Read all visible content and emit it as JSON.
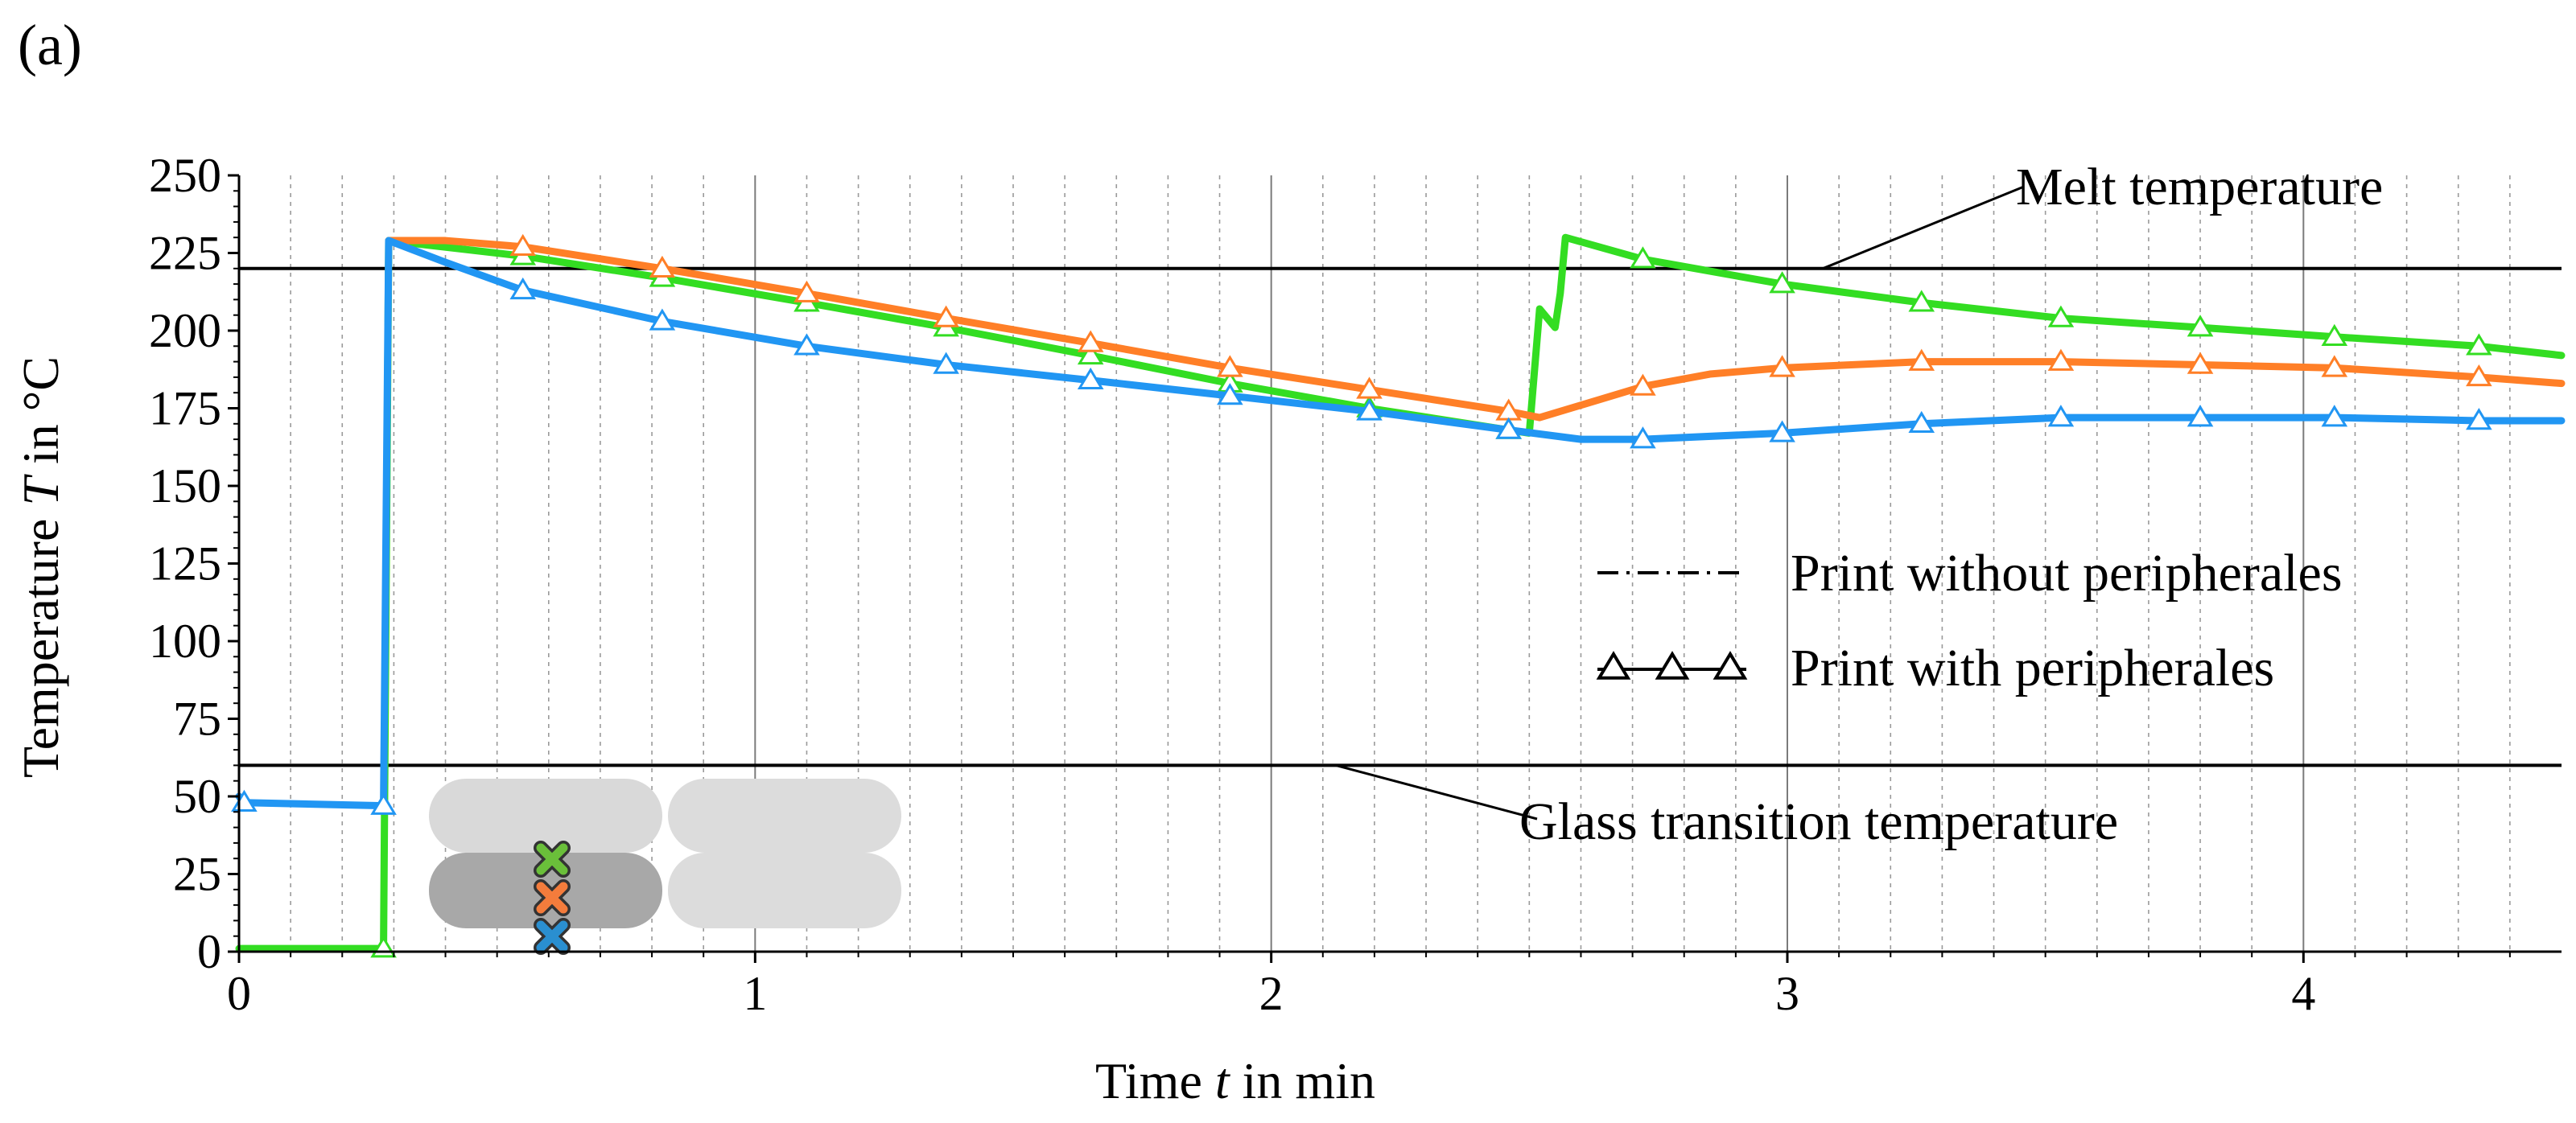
{
  "chart_data": {
    "type": "line",
    "panel_label": "(a)",
    "xlabel": "Time t in min",
    "xlabel_prefix": "Time ",
    "xlabel_var": "t",
    "xlabel_suffix": " in min",
    "ylabel": "Temperature T in °C",
    "ylabel_prefix": "Temperature ",
    "ylabel_var": "T",
    "ylabel_suffix": " in °C",
    "xlim": [
      0,
      4.5
    ],
    "ylim": [
      0,
      250
    ],
    "xticks": [
      0,
      1,
      2,
      3,
      4
    ],
    "xtick_labels": [
      "0",
      "1",
      "2",
      "3",
      "4"
    ],
    "yticks": [
      0,
      25,
      50,
      75,
      100,
      125,
      150,
      175,
      200,
      225,
      250
    ],
    "ytick_labels": [
      "0",
      "25",
      "50",
      "75",
      "100",
      "125",
      "150",
      "175",
      "200",
      "225",
      "250"
    ],
    "grid": "major solid, minor dotted (x)",
    "reference_lines": [
      {
        "name": "melt",
        "y": 220,
        "label": "Melt temperature"
      },
      {
        "name": "glass",
        "y": 60,
        "label": "Glass transition temperature"
      }
    ],
    "legend": {
      "placement": "center-right",
      "entries": [
        {
          "label": "Print without peripherales",
          "style": "dash-dot"
        },
        {
          "label": "Print with peripherales",
          "style": "triangle-markers"
        }
      ]
    },
    "series": [
      {
        "name": "Top (green)",
        "color": "#33dd22",
        "x": [
          0,
          0.27,
          0.28,
          0.29,
          0.55,
          0.82,
          1.1,
          1.37,
          1.65,
          1.92,
          2.19,
          2.46,
          2.5,
          2.52,
          2.55,
          2.56,
          2.57,
          2.72,
          2.99,
          3.26,
          3.53,
          3.8,
          4.06,
          4.34,
          4.5
        ],
        "values": [
          1,
          1,
          1,
          229,
          224,
          217,
          209,
          201,
          192,
          183,
          175,
          168,
          167,
          207,
          201,
          212,
          230,
          223,
          215,
          209,
          204,
          201,
          198,
          195,
          192
        ],
        "marker_x": [
          0.28,
          0.55,
          0.82,
          1.1,
          1.37,
          1.65,
          1.92,
          2.19,
          2.46,
          2.72,
          2.99,
          3.26,
          3.53,
          3.8,
          4.06,
          4.34
        ]
      },
      {
        "name": "Middle (orange)",
        "color": "#ff7f27",
        "x": [
          0.29,
          0.4,
          0.55,
          0.82,
          1.1,
          1.37,
          1.65,
          1.92,
          2.19,
          2.46,
          2.52,
          2.6,
          2.72,
          2.85,
          2.99,
          3.26,
          3.53,
          3.8,
          4.06,
          4.34,
          4.5
        ],
        "values": [
          229,
          229,
          227,
          220,
          212,
          204,
          196,
          188,
          181,
          174,
          172,
          176,
          182,
          186,
          188,
          190,
          190,
          189,
          188,
          185,
          183
        ],
        "marker_x": [
          0.55,
          0.82,
          1.1,
          1.37,
          1.65,
          1.92,
          2.19,
          2.46,
          2.72,
          2.99,
          3.26,
          3.53,
          3.8,
          4.06,
          4.34
        ]
      },
      {
        "name": "Bottom (blue)",
        "color": "#2196f3",
        "x": [
          0,
          0.01,
          0.28,
          0.29,
          0.4,
          0.55,
          0.82,
          1.1,
          1.37,
          1.65,
          1.92,
          2.19,
          2.46,
          2.6,
          2.72,
          2.99,
          3.26,
          3.53,
          3.8,
          4.06,
          4.34,
          4.5
        ],
        "values": [
          50,
          48,
          47,
          229,
          222,
          213,
          203,
          195,
          189,
          184,
          179,
          174,
          168,
          165,
          165,
          167,
          170,
          172,
          172,
          172,
          171,
          171
        ],
        "marker_x": [
          0.01,
          0.28,
          0.55,
          0.82,
          1.1,
          1.37,
          1.65,
          1.92,
          2.19,
          2.46,
          2.72,
          2.99,
          3.26,
          3.53,
          3.8,
          4.06,
          4.34
        ]
      }
    ],
    "inset": {
      "description": "cross-section of deposited strands with measurement points",
      "points": [
        {
          "color": "#6abf3a",
          "level": "top"
        },
        {
          "color": "#f47c3c",
          "level": "middle"
        },
        {
          "color": "#2a8fd0",
          "level": "bottom"
        }
      ]
    }
  }
}
